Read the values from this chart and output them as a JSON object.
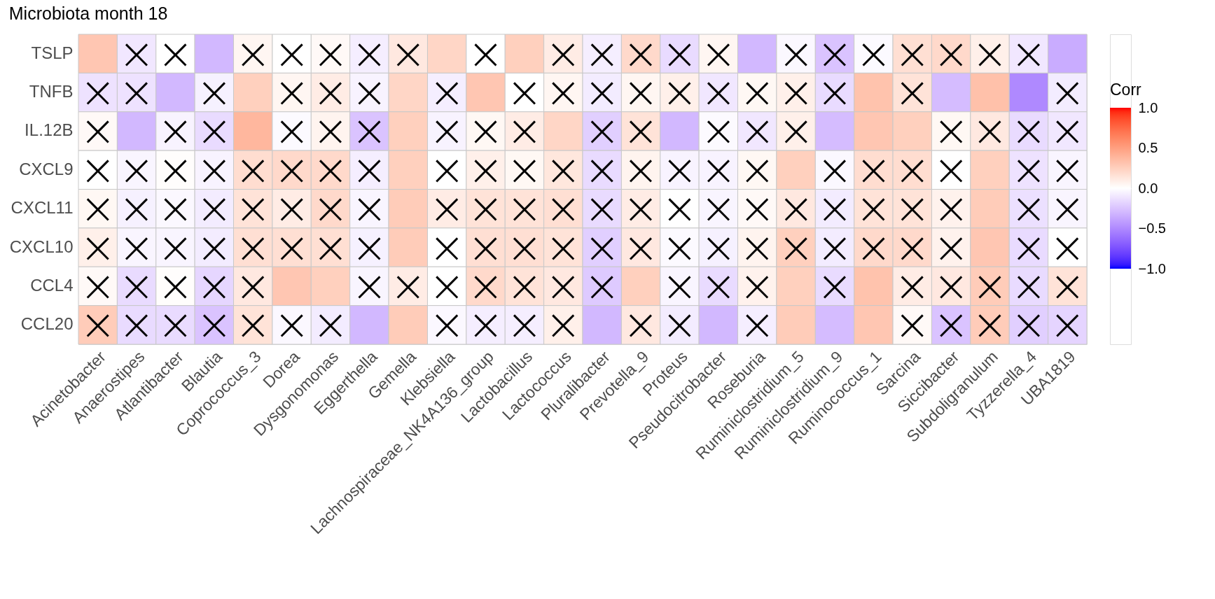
{
  "chart_data": {
    "type": "heatmap",
    "title": "Microbiota month 18",
    "clabel": "Corr",
    "grid": false,
    "categories": [
      "Acinetobacter",
      "Anaerostipes",
      "Atlantibacter",
      "Blautia",
      "Coprococcus_3",
      "Dorea",
      "Dysgonomonas",
      "Eggerthella",
      "Gemella",
      "Klebsiella",
      "Lachnospiraceae_NK4A136_group",
      "Lactobacillus",
      "Lactococcus",
      "Pluralibacter",
      "Prevotella_9",
      "Proteus",
      "Pseudocitrobacter",
      "Roseburia",
      "Ruminiclostridium_5",
      "Ruminiclostridium_9",
      "Ruminococcus_1",
      "Sarcina",
      "Siccibacter",
      "Subdoligranulum",
      "Tyzzerella_4",
      "UBA1819"
    ],
    "y_categories": [
      "TSLP",
      "TNFB",
      "IL.12B",
      "CXCL9",
      "CXCL11",
      "CXCL10",
      "CCL4",
      "CCL20"
    ],
    "cells": [
      [
        0.3,
        -0.1,
        0.0,
        -0.3,
        0.05,
        0.0,
        0.03,
        -0.07,
        0.12,
        0.22,
        0.0,
        0.25,
        0.1,
        -0.07,
        0.2,
        -0.15,
        0.05,
        -0.3,
        -0.03,
        -0.25,
        -0.02,
        0.17,
        0.2,
        0.08,
        -0.1,
        -0.35
      ],
      [
        -0.12,
        -0.12,
        -0.3,
        -0.06,
        0.25,
        0.05,
        0.1,
        -0.05,
        0.22,
        -0.07,
        0.3,
        0.0,
        0.05,
        -0.08,
        0.05,
        0.08,
        -0.1,
        0.04,
        0.08,
        -0.15,
        0.32,
        0.15,
        -0.28,
        0.33,
        -0.5,
        -0.08
      ],
      [
        0.03,
        -0.3,
        -0.05,
        -0.15,
        0.38,
        -0.02,
        0.06,
        -0.25,
        0.25,
        -0.05,
        0.04,
        0.1,
        0.22,
        -0.2,
        0.15,
        -0.3,
        -0.02,
        -0.1,
        0.08,
        -0.28,
        0.3,
        0.25,
        0.04,
        0.12,
        -0.15,
        -0.1
      ],
      [
        0.0,
        -0.04,
        0.01,
        -0.05,
        0.18,
        0.2,
        0.2,
        -0.07,
        0.25,
        0.0,
        0.08,
        0.04,
        0.13,
        -0.15,
        0.06,
        -0.05,
        -0.05,
        0.04,
        0.25,
        -0.03,
        0.18,
        0.18,
        0.0,
        0.25,
        -0.12,
        -0.04
      ],
      [
        0.04,
        -0.06,
        -0.03,
        -0.08,
        0.15,
        0.1,
        0.2,
        -0.04,
        0.27,
        0.1,
        0.15,
        0.15,
        0.17,
        -0.15,
        0.1,
        0.0,
        -0.04,
        0.03,
        0.12,
        -0.08,
        0.15,
        0.15,
        0.07,
        0.27,
        -0.13,
        -0.04
      ],
      [
        0.08,
        -0.04,
        -0.04,
        -0.08,
        0.17,
        0.17,
        0.17,
        -0.06,
        0.27,
        0.0,
        0.17,
        0.17,
        0.15,
        -0.2,
        0.12,
        -0.02,
        -0.06,
        0.06,
        0.25,
        -0.08,
        0.2,
        0.2,
        0.07,
        0.3,
        -0.15,
        0.0
      ],
      [
        0.03,
        -0.15,
        0.01,
        -0.17,
        0.12,
        0.3,
        0.25,
        -0.04,
        0.1,
        0.0,
        0.2,
        0.15,
        0.12,
        -0.22,
        0.25,
        -0.04,
        -0.15,
        0.07,
        0.25,
        -0.15,
        0.32,
        0.1,
        0.12,
        0.27,
        -0.15,
        0.15
      ],
      [
        0.27,
        -0.15,
        -0.15,
        -0.25,
        0.15,
        -0.03,
        -0.08,
        -0.3,
        0.27,
        -0.03,
        -0.07,
        -0.07,
        0.08,
        -0.3,
        0.12,
        -0.08,
        -0.3,
        -0.07,
        0.27,
        -0.28,
        0.3,
        0.03,
        -0.25,
        0.27,
        -0.2,
        -0.18
      ]
    ],
    "cell_labels": [
      [
        null,
        "×",
        "×",
        null,
        "×",
        "×",
        "×",
        "×",
        "×",
        null,
        "×",
        null,
        "×",
        "×",
        "×",
        "×",
        "×",
        null,
        "×",
        "×",
        "×",
        "×",
        "×",
        "×",
        "×",
        null
      ],
      [
        "×",
        "×",
        null,
        "×",
        null,
        "×",
        "×",
        "×",
        null,
        "×",
        null,
        "×",
        "×",
        "×",
        "×",
        "×",
        "×",
        "×",
        "×",
        "×",
        null,
        "×",
        null,
        null,
        null,
        "×"
      ],
      [
        "×",
        null,
        "×",
        "×",
        null,
        "×",
        "×",
        "×",
        null,
        "×",
        "×",
        "×",
        null,
        "×",
        "×",
        null,
        "×",
        "×",
        "×",
        null,
        null,
        null,
        "×",
        "×",
        "×",
        "×"
      ],
      [
        "×",
        "×",
        "×",
        "×",
        "×",
        "×",
        "×",
        "×",
        null,
        "×",
        "×",
        "×",
        "×",
        "×",
        "×",
        "×",
        "×",
        "×",
        null,
        "×",
        "×",
        "×",
        "×",
        null,
        "×",
        "×"
      ],
      [
        "×",
        "×",
        "×",
        "×",
        "×",
        "×",
        "×",
        "×",
        null,
        "×",
        "×",
        "×",
        "×",
        "×",
        "×",
        "×",
        "×",
        "×",
        "×",
        "×",
        "×",
        "×",
        "×",
        null,
        "×",
        "×"
      ],
      [
        "×",
        "×",
        "×",
        "×",
        "×",
        "×",
        "×",
        "×",
        null,
        "×",
        "×",
        "×",
        "×",
        "×",
        "×",
        "×",
        "×",
        "×",
        "×",
        "×",
        "×",
        "×",
        "×",
        null,
        "×",
        "×"
      ],
      [
        "×",
        "×",
        "×",
        "×",
        "×",
        null,
        null,
        "×",
        "×",
        "×",
        "×",
        "×",
        "×",
        "×",
        null,
        "×",
        "×",
        "×",
        null,
        "×",
        null,
        "×",
        "×",
        "×",
        "×",
        "×"
      ],
      [
        "×",
        "×",
        "×",
        "×",
        "×",
        "×",
        "×",
        null,
        null,
        "×",
        "×",
        "×",
        "×",
        null,
        "×",
        "×",
        null,
        "×",
        null,
        null,
        null,
        "×",
        "×",
        "×",
        "×",
        "×"
      ]
    ],
    "colors": [
      "#0000ff",
      "#ffffff",
      "#ff0000"
    ],
    "clim": [
      -1,
      1
    ],
    "cticks": [
      {
        "value": -1,
        "label": "−1.0"
      },
      {
        "value": -0.5,
        "label": "−0.5"
      },
      {
        "value": 0,
        "label": "0.0"
      },
      {
        "value": 0.5,
        "label": "0.5"
      },
      {
        "value": 1,
        "label": "1.0"
      }
    ]
  }
}
